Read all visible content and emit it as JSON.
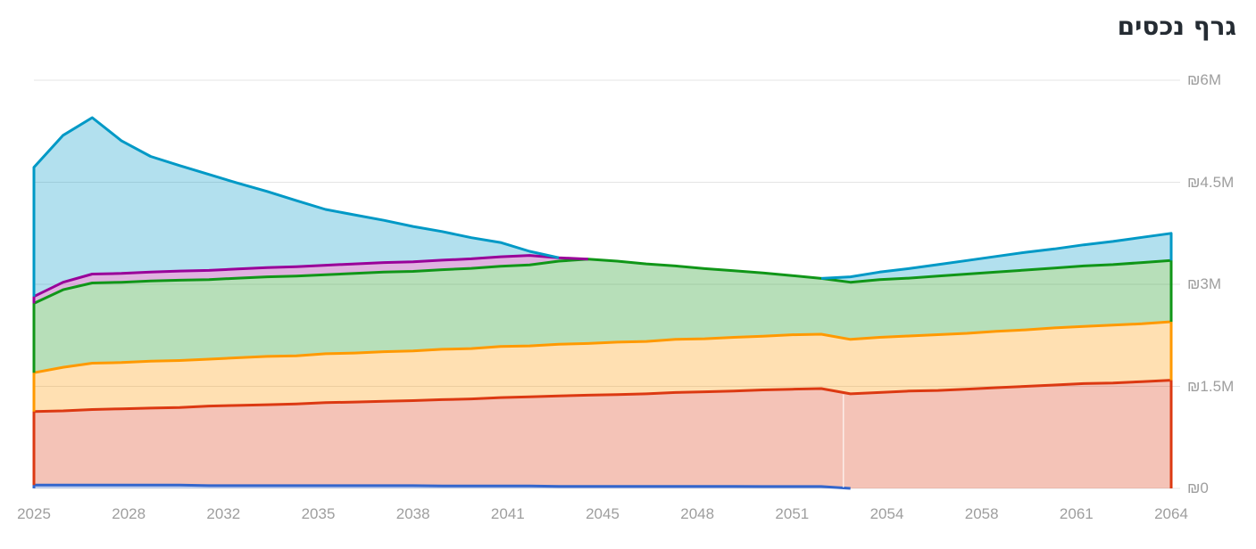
{
  "header": {
    "title": "גרף נכסים",
    "title_color": "#252c33"
  },
  "chart_data": {
    "type": "area",
    "stacked": true,
    "rtl": true,
    "title": "גרף נכסים",
    "currency_symbol": "₪",
    "unit": "millions ILS",
    "grid": {
      "color": "#e4e4e4",
      "horizontal": true,
      "vertical": false
    },
    "x": [
      2025,
      2026,
      2027,
      2028,
      2029,
      2030,
      2031,
      2032,
      2033,
      2034,
      2035,
      2036,
      2037,
      2038,
      2039,
      2040,
      2041,
      2042,
      2043,
      2044,
      2045,
      2046,
      2047,
      2048,
      2049,
      2050,
      2051,
      2052,
      2053,
      2054,
      2055,
      2056,
      2057,
      2058,
      2059,
      2060,
      2061,
      2062,
      2063,
      2064
    ],
    "x_axis": {
      "range": [
        2025,
        2064
      ],
      "ticks": [
        {
          "label": "2025",
          "pos": 2025
        },
        {
          "label": "2028",
          "pos": 2028.25
        },
        {
          "label": "2032",
          "pos": 2031.5
        },
        {
          "label": "2035",
          "pos": 2034.75
        },
        {
          "label": "2038",
          "pos": 2038
        },
        {
          "label": "2041",
          "pos": 2041.25
        },
        {
          "label": "2045",
          "pos": 2044.5
        },
        {
          "label": "2048",
          "pos": 2047.75
        },
        {
          "label": "2051",
          "pos": 2051
        },
        {
          "label": "2054",
          "pos": 2054.25
        },
        {
          "label": "2058",
          "pos": 2057.5
        },
        {
          "label": "2061",
          "pos": 2060.75
        },
        {
          "label": "2064",
          "pos": 2064
        }
      ]
    },
    "y_axis": {
      "side": "right",
      "range": [
        0,
        6
      ],
      "tick_values": [
        0,
        1.5,
        3,
        4.5,
        6
      ],
      "tick_labels": [
        "₪0",
        "₪1.5M",
        "₪3M",
        "₪4.5M",
        "₪6M"
      ],
      "label_color": "#9e9e9e"
    },
    "series": [
      {
        "id": "band-1-royal-blue",
        "color": "#3366cc",
        "fill": "rgba(51,102,204,0.3)",
        "values": [
          0.05,
          0.05,
          0.05,
          0.05,
          0.05,
          0.05,
          0.04,
          0.04,
          0.04,
          0.04,
          0.04,
          0.04,
          0.04,
          0.04,
          0.035,
          0.035,
          0.035,
          0.035,
          0.03,
          0.03,
          0.03,
          0.03,
          0.03,
          0.03,
          0.03,
          0.028,
          0.028,
          0.027,
          0,
          0,
          0,
          0,
          0,
          0,
          0,
          0,
          0,
          0,
          0,
          0
        ]
      },
      {
        "id": "band-2-red",
        "color": "#dc3912",
        "fill": "rgba(220,57,18,0.3)",
        "values": [
          1.08,
          1.09,
          1.11,
          1.12,
          1.13,
          1.14,
          1.17,
          1.18,
          1.19,
          1.2,
          1.22,
          1.23,
          1.24,
          1.25,
          1.27,
          1.28,
          1.3,
          1.31,
          1.33,
          1.34,
          1.35,
          1.36,
          1.38,
          1.39,
          1.4,
          1.42,
          1.43,
          1.44,
          1.39,
          1.41,
          1.43,
          1.44,
          1.46,
          1.48,
          1.5,
          1.52,
          1.54,
          1.55,
          1.57,
          1.59
        ]
      },
      {
        "id": "band-3-orange",
        "color": "#ff9900",
        "fill": "rgba(255,153,0,0.3)",
        "values": [
          0.57,
          0.64,
          0.68,
          0.68,
          0.69,
          0.69,
          0.69,
          0.7,
          0.71,
          0.71,
          0.72,
          0.72,
          0.73,
          0.73,
          0.74,
          0.74,
          0.75,
          0.75,
          0.76,
          0.76,
          0.77,
          0.77,
          0.78,
          0.78,
          0.79,
          0.79,
          0.8,
          0.8,
          0.8,
          0.81,
          0.81,
          0.82,
          0.82,
          0.83,
          0.83,
          0.84,
          0.84,
          0.85,
          0.85,
          0.86
        ]
      },
      {
        "id": "band-4-green",
        "color": "#109618",
        "fill": "rgba(16,150,24,0.3)",
        "values": [
          1.02,
          1.14,
          1.18,
          1.18,
          1.18,
          1.18,
          1.17,
          1.17,
          1.17,
          1.17,
          1.16,
          1.17,
          1.17,
          1.17,
          1.17,
          1.18,
          1.18,
          1.19,
          1.22,
          1.24,
          1.19,
          1.14,
          1.08,
          1.03,
          0.98,
          0.93,
          0.87,
          0.82,
          0.84,
          0.85,
          0.85,
          0.86,
          0.87,
          0.87,
          0.88,
          0.88,
          0.89,
          0.89,
          0.9,
          0.9
        ]
      },
      {
        "id": "band-5-purple",
        "color": "#990099",
        "fill": "rgba(153,0,153,0.3)",
        "values": [
          0.1,
          0.11,
          0.13,
          0.13,
          0.13,
          0.135,
          0.135,
          0.135,
          0.135,
          0.14,
          0.14,
          0.14,
          0.14,
          0.14,
          0.14,
          0.14,
          0.14,
          0.14,
          0.05,
          0,
          0,
          0,
          0,
          0,
          0,
          0,
          0,
          0,
          0,
          0,
          0,
          0,
          0,
          0,
          0,
          0,
          0,
          0,
          0,
          0
        ]
      },
      {
        "id": "band-6-sky-blue",
        "color": "#0099c6",
        "fill": "rgba(0,153,198,0.3)",
        "values": [
          1.9,
          2.16,
          2.3,
          1.95,
          1.7,
          1.55,
          1.41,
          1.26,
          1.12,
          0.97,
          0.82,
          0.72,
          0.62,
          0.52,
          0.42,
          0.31,
          0.21,
          0.06,
          0,
          0,
          0,
          0,
          0,
          0,
          0,
          0,
          0,
          0,
          0.08,
          0.11,
          0.14,
          0.17,
          0.2,
          0.23,
          0.26,
          0.28,
          0.31,
          0.34,
          0.37,
          0.4
        ]
      }
    ],
    "segment_seam_year": 2052.76
  }
}
